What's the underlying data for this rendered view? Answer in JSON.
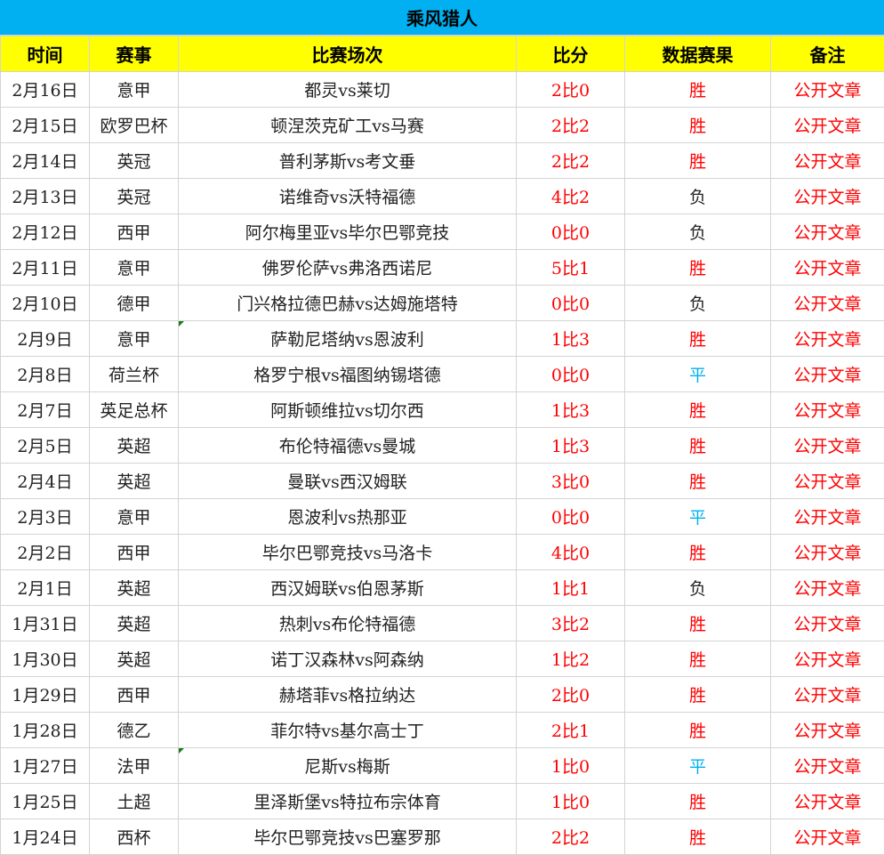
{
  "title": "乘风猎人",
  "headers": [
    "时间",
    "赛事",
    "比赛场次",
    "比分",
    "数据赛果",
    "备注"
  ],
  "colors": {
    "title_bg": "#00B0F0",
    "header_bg": "#FFFF00",
    "red": "#FF0000",
    "draw": "#00B0F0"
  },
  "rows": [
    {
      "date": "2月16日",
      "league": "意甲",
      "match": "都灵vs莱切",
      "score": "2比0",
      "result": "胜",
      "note": "公开文章"
    },
    {
      "date": "2月15日",
      "league": "欧罗巴杯",
      "match": "顿涅茨克矿工vs马赛",
      "score": "2比2",
      "result": "胜",
      "note": "公开文章"
    },
    {
      "date": "2月14日",
      "league": "英冠",
      "match": "普利茅斯vs考文垂",
      "score": "2比2",
      "result": "胜",
      "note": "公开文章"
    },
    {
      "date": "2月13日",
      "league": "英冠",
      "match": "诺维奇vs沃特福德",
      "score": "4比2",
      "result": "负",
      "note": "公开文章"
    },
    {
      "date": "2月12日",
      "league": "西甲",
      "match": "阿尔梅里亚vs毕尔巴鄂竞技",
      "score": "0比0",
      "result": "负",
      "note": "公开文章"
    },
    {
      "date": "2月11日",
      "league": "意甲",
      "match": "佛罗伦萨vs弗洛西诺尼",
      "score": "5比1",
      "result": "胜",
      "note": "公开文章"
    },
    {
      "date": "2月10日",
      "league": "德甲",
      "match": "门兴格拉德巴赫vs达姆施塔特",
      "score": "0比0",
      "result": "负",
      "note": "公开文章"
    },
    {
      "date": "2月9日",
      "league": "意甲",
      "match": "萨勒尼塔纳vs恩波利",
      "score": "1比3",
      "result": "胜",
      "note": "公开文章"
    },
    {
      "date": "2月8日",
      "league": "荷兰杯",
      "match": "格罗宁根vs福图纳锡塔德",
      "score": "0比0",
      "result": "平",
      "note": "公开文章"
    },
    {
      "date": "2月7日",
      "league": "英足总杯",
      "match": "阿斯顿维拉vs切尔西",
      "score": "1比3",
      "result": "胜",
      "note": "公开文章"
    },
    {
      "date": "2月5日",
      "league": "英超",
      "match": "布伦特福德vs曼城",
      "score": "1比3",
      "result": "胜",
      "note": "公开文章"
    },
    {
      "date": "2月4日",
      "league": "英超",
      "match": "曼联vs西汉姆联",
      "score": "3比0",
      "result": "胜",
      "note": "公开文章"
    },
    {
      "date": "2月3日",
      "league": "意甲",
      "match": "恩波利vs热那亚",
      "score": "0比0",
      "result": "平",
      "note": "公开文章"
    },
    {
      "date": "2月2日",
      "league": "西甲",
      "match": "毕尔巴鄂竞技vs马洛卡",
      "score": "4比0",
      "result": "胜",
      "note": "公开文章"
    },
    {
      "date": "2月1日",
      "league": "英超",
      "match": "西汉姆联vs伯恩茅斯",
      "score": "1比1",
      "result": "负",
      "note": "公开文章"
    },
    {
      "date": "1月31日",
      "league": "英超",
      "match": "热刺vs布伦特福德",
      "score": "3比2",
      "result": "胜",
      "note": "公开文章"
    },
    {
      "date": "1月30日",
      "league": "英超",
      "match": "诺丁汉森林vs阿森纳",
      "score": "1比2",
      "result": "胜",
      "note": "公开文章"
    },
    {
      "date": "1月29日",
      "league": "西甲",
      "match": "赫塔菲vs格拉纳达",
      "score": "2比0",
      "result": "胜",
      "note": "公开文章"
    },
    {
      "date": "1月28日",
      "league": "德乙",
      "match": "菲尔特vs基尔高士丁",
      "score": "2比1",
      "result": "胜",
      "note": "公开文章"
    },
    {
      "date": "1月27日",
      "league": "法甲",
      "match": "尼斯vs梅斯",
      "score": "1比0",
      "result": "平",
      "note": "公开文章"
    },
    {
      "date": "1月25日",
      "league": "土超",
      "match": "里泽斯堡vs特拉布宗体育",
      "score": "1比0",
      "result": "胜",
      "note": "公开文章"
    },
    {
      "date": "1月24日",
      "league": "西杯",
      "match": "毕尔巴鄂竞技vs巴塞罗那",
      "score": "2比2",
      "result": "胜",
      "note": "公开文章"
    }
  ]
}
